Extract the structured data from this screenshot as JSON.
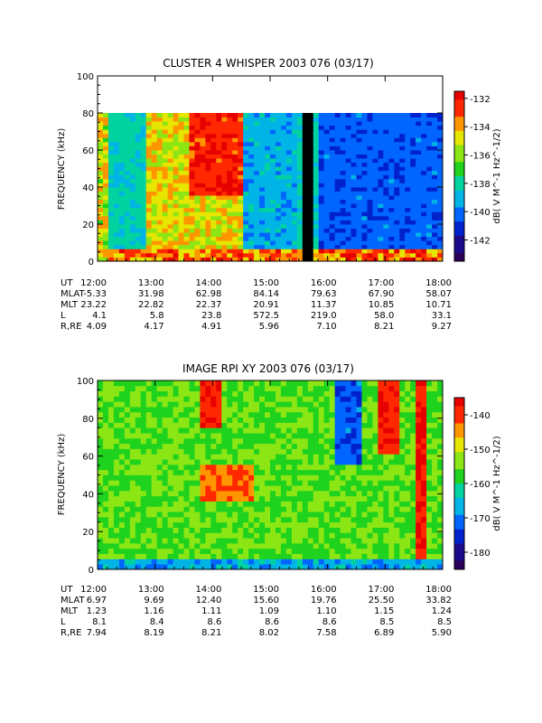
{
  "colors": {
    "scale": [
      "#2a005a",
      "#1d0a8c",
      "#0022cc",
      "#0066ff",
      "#00b4e6",
      "#00d2a0",
      "#1ed21e",
      "#8ce614",
      "#e6e600",
      "#ff9600",
      "#ff2800",
      "#e60000"
    ]
  },
  "chart_data": [
    {
      "type": "heatmap",
      "title": "CLUSTER 4 WHISPER 2003 076 (03/17)",
      "ylabel": "FREQUENCY (kHz)",
      "ylim": [
        0,
        100
      ],
      "y_ticks": [
        "0",
        "20",
        "40",
        "60",
        "80",
        "100"
      ],
      "data_ymax": 80,
      "colorbar": {
        "label": "dB( V M⁻¹ Hz⁻¹ᐟ²)",
        "label_text": "dB( V M^-1 Hz^-1/2)",
        "range": [
          -143.5,
          -131.5
        ],
        "ticks": [
          "-132",
          "-134",
          "-136",
          "-138",
          "-140",
          "-142"
        ],
        "tick_values": [
          -132,
          -134,
          -136,
          -138,
          -140,
          -142
        ]
      },
      "x_ticks": [
        "12:00",
        "13:00",
        "14:00",
        "15:00",
        "16:00",
        "17:00",
        "18:00"
      ],
      "ephemeris": [
        {
          "label": "UT",
          "values": [
            "12:00",
            "13:00",
            "14:00",
            "15:00",
            "16:00",
            "17:00",
            "18:00"
          ]
        },
        {
          "label": "MLAT",
          "values": [
            "-5.33",
            "31.98",
            "62.98",
            "84.14",
            "79.63",
            "67.90",
            "58.07"
          ]
        },
        {
          "label": "MLT",
          "values": [
            "23.22",
            "22.82",
            "22.37",
            "20.91",
            "11.37",
            "10.85",
            "10.71"
          ]
        },
        {
          "label": "L",
          "values": [
            "4.1",
            "5.8",
            "23.8",
            "572.5",
            "219.0",
            "58.0",
            "33.1"
          ]
        },
        {
          "label": "R,RE",
          "values": [
            "4.09",
            "4.17",
            "4.91",
            "5.96",
            "7.10",
            "8.21",
            "9.27"
          ]
        }
      ]
    },
    {
      "type": "heatmap",
      "title": "IMAGE RPI XY 2003 076 (03/17)",
      "ylabel": "FREQUENCY (kHz)",
      "ylim": [
        0,
        100
      ],
      "y_ticks": [
        "0",
        "20",
        "40",
        "60",
        "80",
        "100"
      ],
      "data_ymax": 100,
      "colorbar": {
        "label_text": "dB( V M^-1 Hz^-1/2)",
        "range": [
          -185,
          -135
        ],
        "ticks": [
          "-140",
          "-150",
          "-160",
          "-170",
          "-180"
        ],
        "tick_values": [
          -140,
          -150,
          -160,
          -170,
          -180
        ]
      },
      "x_ticks": [
        "12:00",
        "13:00",
        "14:00",
        "15:00",
        "16:00",
        "17:00",
        "18:00"
      ],
      "ephemeris": [
        {
          "label": "UT",
          "values": [
            "12:00",
            "13:00",
            "14:00",
            "15:00",
            "16:00",
            "17:00",
            "18:00"
          ]
        },
        {
          "label": "MLAT",
          "values": [
            "6.97",
            "9.69",
            "12.40",
            "15.60",
            "19.76",
            "25.50",
            "33.82"
          ]
        },
        {
          "label": "MLT",
          "values": [
            "1.23",
            "1.16",
            "1.11",
            "1.09",
            "1.10",
            "1.15",
            "1.24"
          ]
        },
        {
          "label": "L",
          "values": [
            "8.1",
            "8.4",
            "8.6",
            "8.6",
            "8.6",
            "8.5",
            "8.5"
          ]
        },
        {
          "label": "R,RE",
          "values": [
            "7.94",
            "8.19",
            "8.21",
            "8.02",
            "7.58",
            "6.89",
            "5.90"
          ]
        }
      ]
    }
  ]
}
